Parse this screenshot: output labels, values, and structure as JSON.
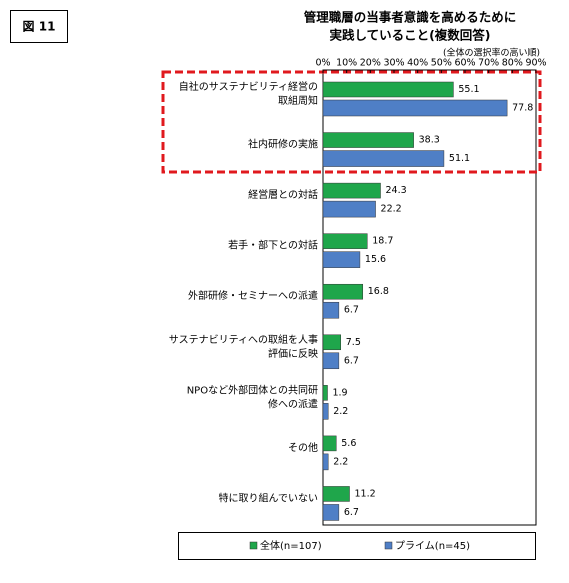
{
  "figure_label": "図 11",
  "chart_data": {
    "type": "hbar",
    "title": "管理職層の当事者意識を高めるために",
    "title2": "実践していること(複数回答)",
    "subtitle": "(全体の選択率の高い順)",
    "categories": [
      "自社のサステナビリティ経営の\n取組周知",
      "社内研修の実施",
      "経営層との対話",
      "若手・部下との対話",
      "外部研修・セミナーへの派遣",
      "サステナビリティへの取組を人事\n評価に反映",
      "NPOなど外部団体との共同研\n修への派遣",
      "その他",
      "特に取り組んでいない"
    ],
    "series": [
      {
        "name": "全体(n=107)",
        "color": "#1fa64b",
        "values": [
          55.1,
          38.3,
          24.3,
          18.7,
          16.8,
          7.5,
          1.9,
          5.6,
          11.2
        ]
      },
      {
        "name": "プライム(n=45)",
        "color": "#4f7fc6",
        "values": [
          77.8,
          51.1,
          22.2,
          15.6,
          6.7,
          6.7,
          2.2,
          2.2,
          6.7
        ]
      }
    ],
    "xlim": [
      0,
      90
    ],
    "xticks": [
      {
        "value": 0,
        "label": "0%"
      },
      {
        "value": 10,
        "label": "10%"
      },
      {
        "value": 20,
        "label": "20%"
      },
      {
        "value": 30,
        "label": "30%"
      },
      {
        "value": 40,
        "label": "40%"
      },
      {
        "value": 50,
        "label": "50%"
      },
      {
        "value": 60,
        "label": "60%"
      },
      {
        "value": 70,
        "label": "70%"
      },
      {
        "value": 80,
        "label": "80%"
      },
      {
        "value": 90,
        "label": "90%"
      }
    ],
    "grid": false
  }
}
